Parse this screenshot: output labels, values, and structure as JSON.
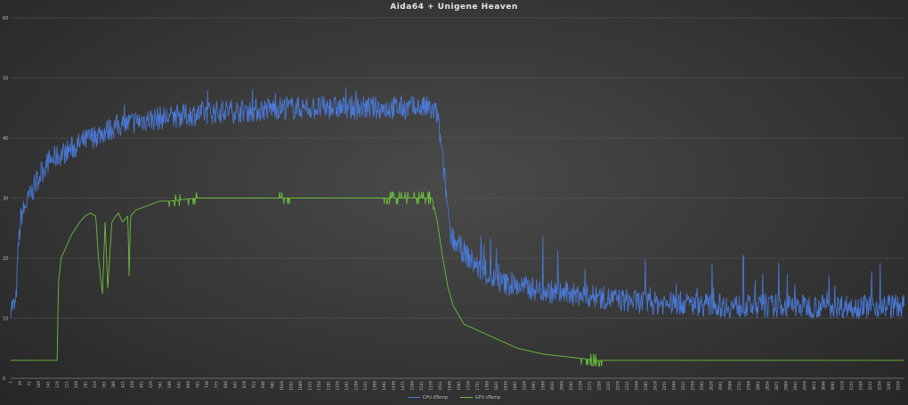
{
  "chart_data": {
    "type": "line",
    "title": "Aida64 + Unigene Heaven",
    "ylim": [
      0,
      60
    ],
    "yticks": [
      0,
      10,
      20,
      30,
      40,
      50,
      60
    ],
    "grid": true,
    "legend_position": "bottom",
    "xlim": [
      1,
      3350
    ],
    "x_tick_start": 1,
    "x_tick_step": 35,
    "series": [
      {
        "name": "CPU dTemp",
        "color": "#4a78d4",
        "x": [
          1,
          20,
          30,
          40,
          60,
          80,
          100,
          140,
          180,
          220,
          260,
          300,
          350,
          400,
          450,
          500,
          600,
          700,
          800,
          900,
          1000,
          1100,
          1200,
          1300,
          1400,
          1500,
          1560,
          1600,
          1650,
          1680,
          1700,
          1720,
          1740,
          1760,
          1790,
          1830,
          1880,
          1950,
          2000,
          2100,
          2200,
          2300,
          2400,
          2500,
          2700,
          2900,
          3100,
          3300,
          3350
        ],
        "values": [
          12,
          12,
          22,
          27,
          29,
          31,
          33,
          36,
          37,
          38,
          39,
          40,
          41,
          42,
          42.5,
          43,
          43.5,
          44,
          44.5,
          44.5,
          45,
          45,
          45,
          45,
          45,
          45,
          45,
          44,
          24,
          22,
          21,
          20,
          19,
          18,
          17,
          16,
          15.5,
          15,
          14.5,
          14,
          13.5,
          13,
          12.5,
          12.5,
          12,
          12,
          12,
          12,
          12
        ]
      },
      {
        "name": "GPU dTemp",
        "color": "#6abf3a",
        "x": [
          1,
          100,
          175,
          180,
          190,
          210,
          230,
          260,
          280,
          300,
          320,
          330,
          345,
          355,
          365,
          380,
          395,
          405,
          420,
          440,
          445,
          450,
          470,
          500,
          530,
          560,
          600,
          700,
          800,
          900,
          1000,
          1100,
          1200,
          1300,
          1400,
          1500,
          1560,
          1580,
          1600,
          1620,
          1640,
          1660,
          1700,
          1750,
          1800,
          1850,
          1900,
          2000,
          2100,
          2200,
          2300,
          2500,
          3000,
          3350
        ],
        "values": [
          3,
          3,
          3,
          16,
          20,
          22,
          24,
          26,
          27,
          27.5,
          27,
          20,
          14,
          26,
          15,
          26,
          27,
          27.5,
          26,
          27,
          17,
          27,
          28,
          28.5,
          29,
          29.5,
          29.5,
          30,
          30,
          30,
          30,
          30,
          30,
          30,
          30,
          30,
          30,
          30,
          26,
          20,
          15,
          12,
          9,
          8,
          7,
          6,
          5,
          4,
          3.5,
          3,
          3,
          3,
          3,
          3
        ]
      }
    ]
  }
}
